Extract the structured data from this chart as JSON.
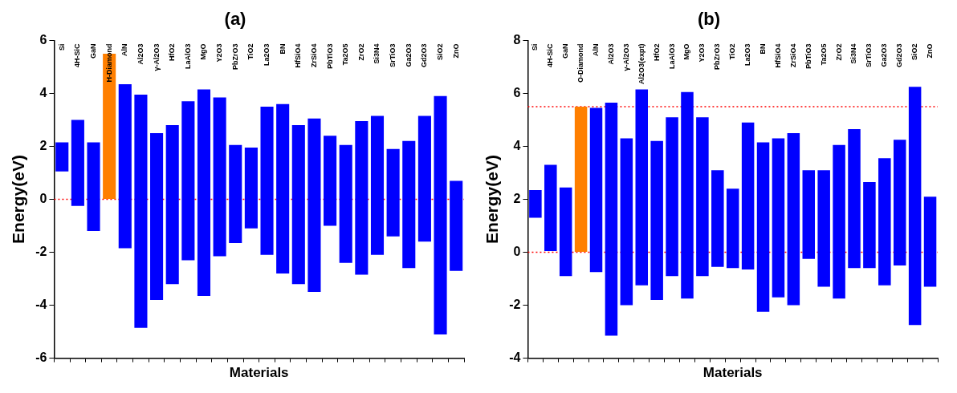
{
  "chart_data": [
    {
      "type": "bar",
      "title": "(a)",
      "xlabel": "Materials",
      "ylabel": "Energy(eV)",
      "grid": false,
      "legend": false,
      "categories": [
        "Si",
        "4H-SiC",
        "GaN",
        "H-Diamond",
        "AlN",
        "Al2O3",
        "γ-Al2O3",
        "HfO2",
        "LaAlO3",
        "MgO",
        "Y2O3",
        "PbZrO3",
        "TiO2",
        "La2O3",
        "BN",
        "HfSiO4",
        "ZrSiO4",
        "PbTiO3",
        "Ta2O5",
        "ZrO2",
        "Si3N4",
        "SrTiO3",
        "Ga2O3",
        "Gd2O3",
        "SiO2",
        "ZnO"
      ],
      "base": [
        1.05,
        -0.25,
        -1.2,
        0,
        -1.85,
        -4.85,
        -3.8,
        -3.2,
        -2.3,
        -3.65,
        -2.15,
        -1.65,
        -1.1,
        -2.1,
        -2.8,
        -3.2,
        -3.5,
        -1.0,
        -2.4,
        -2.85,
        -2.1,
        -1.4,
        -2.6,
        -1.6,
        -5.1,
        -2.7
      ],
      "values": [
        1.1,
        3.25,
        3.35,
        5.5,
        6.2,
        8.8,
        6.3,
        6.0,
        6.0,
        7.8,
        6.0,
        3.7,
        3.05,
        5.6,
        6.4,
        6.0,
        6.55,
        3.4,
        4.45,
        5.8,
        5.25,
        3.3,
        4.8,
        4.75,
        9.0,
        3.4
      ],
      "colors": [
        "#0000ff",
        "#0000ff",
        "#0000ff",
        "#ff7f00",
        "#0000ff",
        "#0000ff",
        "#0000ff",
        "#0000ff",
        "#0000ff",
        "#0000ff",
        "#0000ff",
        "#0000ff",
        "#0000ff",
        "#0000ff",
        "#0000ff",
        "#0000ff",
        "#0000ff",
        "#0000ff",
        "#0000ff",
        "#0000ff",
        "#0000ff",
        "#0000ff",
        "#0000ff",
        "#0000ff",
        "#0000ff",
        "#0000ff"
      ],
      "ylim": [
        -6,
        6
      ],
      "yticks": [
        -6,
        -4,
        -2,
        0,
        2,
        4,
        6
      ],
      "ref_lines": [
        {
          "axis": "y",
          "value": 0,
          "color": "#ff0000",
          "line_style": "dotted"
        }
      ]
    },
    {
      "type": "bar",
      "title": "(b)",
      "xlabel": "Materials",
      "ylabel": "Energy(eV)",
      "grid": false,
      "legend": false,
      "categories": [
        "Si",
        "4H-SiC",
        "GaN",
        "O-Diamond",
        "AlN",
        "Al2O3",
        "γ-Al2O3",
        "Al2O3(expt)",
        "HfO2",
        "LaAlO3",
        "MgO",
        "Y2O3",
        "PbZrO3",
        "TiO2",
        "La2O3",
        "BN",
        "HfSiO4",
        "ZrSiO4",
        "PbTiO3",
        "Ta2O5",
        "ZrO2",
        "Si3N4",
        "SrTiO3",
        "Ga2O3",
        "Gd2O3",
        "SiO2",
        "ZnO"
      ],
      "base": [
        1.3,
        0.05,
        -0.9,
        0,
        -0.75,
        -3.15,
        -2.0,
        -1.25,
        -1.8,
        -0.9,
        -1.75,
        -0.9,
        -0.55,
        -0.6,
        -0.65,
        -2.25,
        -1.7,
        -2.0,
        -0.25,
        -1.3,
        -1.75,
        -0.6,
        -0.6,
        -1.25,
        -0.5,
        -2.75,
        -1.3
      ],
      "values": [
        1.05,
        3.25,
        3.35,
        5.5,
        6.2,
        8.8,
        6.3,
        7.4,
        6.0,
        6.0,
        7.8,
        6.0,
        3.65,
        3.0,
        5.55,
        6.4,
        6.0,
        6.5,
        3.35,
        4.4,
        5.8,
        5.25,
        3.25,
        4.8,
        4.75,
        9.0,
        3.4
      ],
      "colors": [
        "#0000ff",
        "#0000ff",
        "#0000ff",
        "#ff7f00",
        "#0000ff",
        "#0000ff",
        "#0000ff",
        "#0000ff",
        "#0000ff",
        "#0000ff",
        "#0000ff",
        "#0000ff",
        "#0000ff",
        "#0000ff",
        "#0000ff",
        "#0000ff",
        "#0000ff",
        "#0000ff",
        "#0000ff",
        "#0000ff",
        "#0000ff",
        "#0000ff",
        "#0000ff",
        "#0000ff",
        "#0000ff",
        "#0000ff",
        "#0000ff"
      ],
      "ylim": [
        -4,
        8
      ],
      "yticks": [
        -4,
        -2,
        0,
        2,
        4,
        6,
        8
      ],
      "ref_lines": [
        {
          "axis": "y",
          "value": 0,
          "color": "#ff0000",
          "line_style": "dotted"
        },
        {
          "axis": "y",
          "value": 5.5,
          "color": "#ff0000",
          "line_style": "dotted"
        }
      ]
    }
  ]
}
